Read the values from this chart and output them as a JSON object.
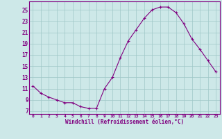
{
  "x": [
    0,
    1,
    2,
    3,
    4,
    5,
    6,
    7,
    8,
    9,
    10,
    11,
    12,
    13,
    14,
    15,
    16,
    17,
    18,
    19,
    20,
    21,
    22,
    23
  ],
  "y": [
    11.5,
    10.2,
    9.5,
    9.0,
    8.5,
    8.5,
    7.8,
    7.5,
    7.5,
    11.0,
    13.0,
    16.5,
    19.5,
    21.5,
    23.5,
    25.0,
    25.5,
    25.5,
    24.5,
    22.5,
    19.8,
    18.0,
    16.0,
    14.0
  ],
  "line_color": "#800080",
  "marker": "+",
  "background_color": "#cde8e8",
  "grid_color": "#a0c8c8",
  "xlabel": "Windchill (Refroidissement éolien,°C)",
  "xlabel_color": "#800080",
  "tick_color": "#800080",
  "yticks": [
    7,
    9,
    11,
    13,
    15,
    17,
    19,
    21,
    23,
    25
  ],
  "ylim": [
    6.5,
    26.5
  ],
  "xlim": [
    -0.5,
    23.5
  ],
  "spine_color": "#800080"
}
